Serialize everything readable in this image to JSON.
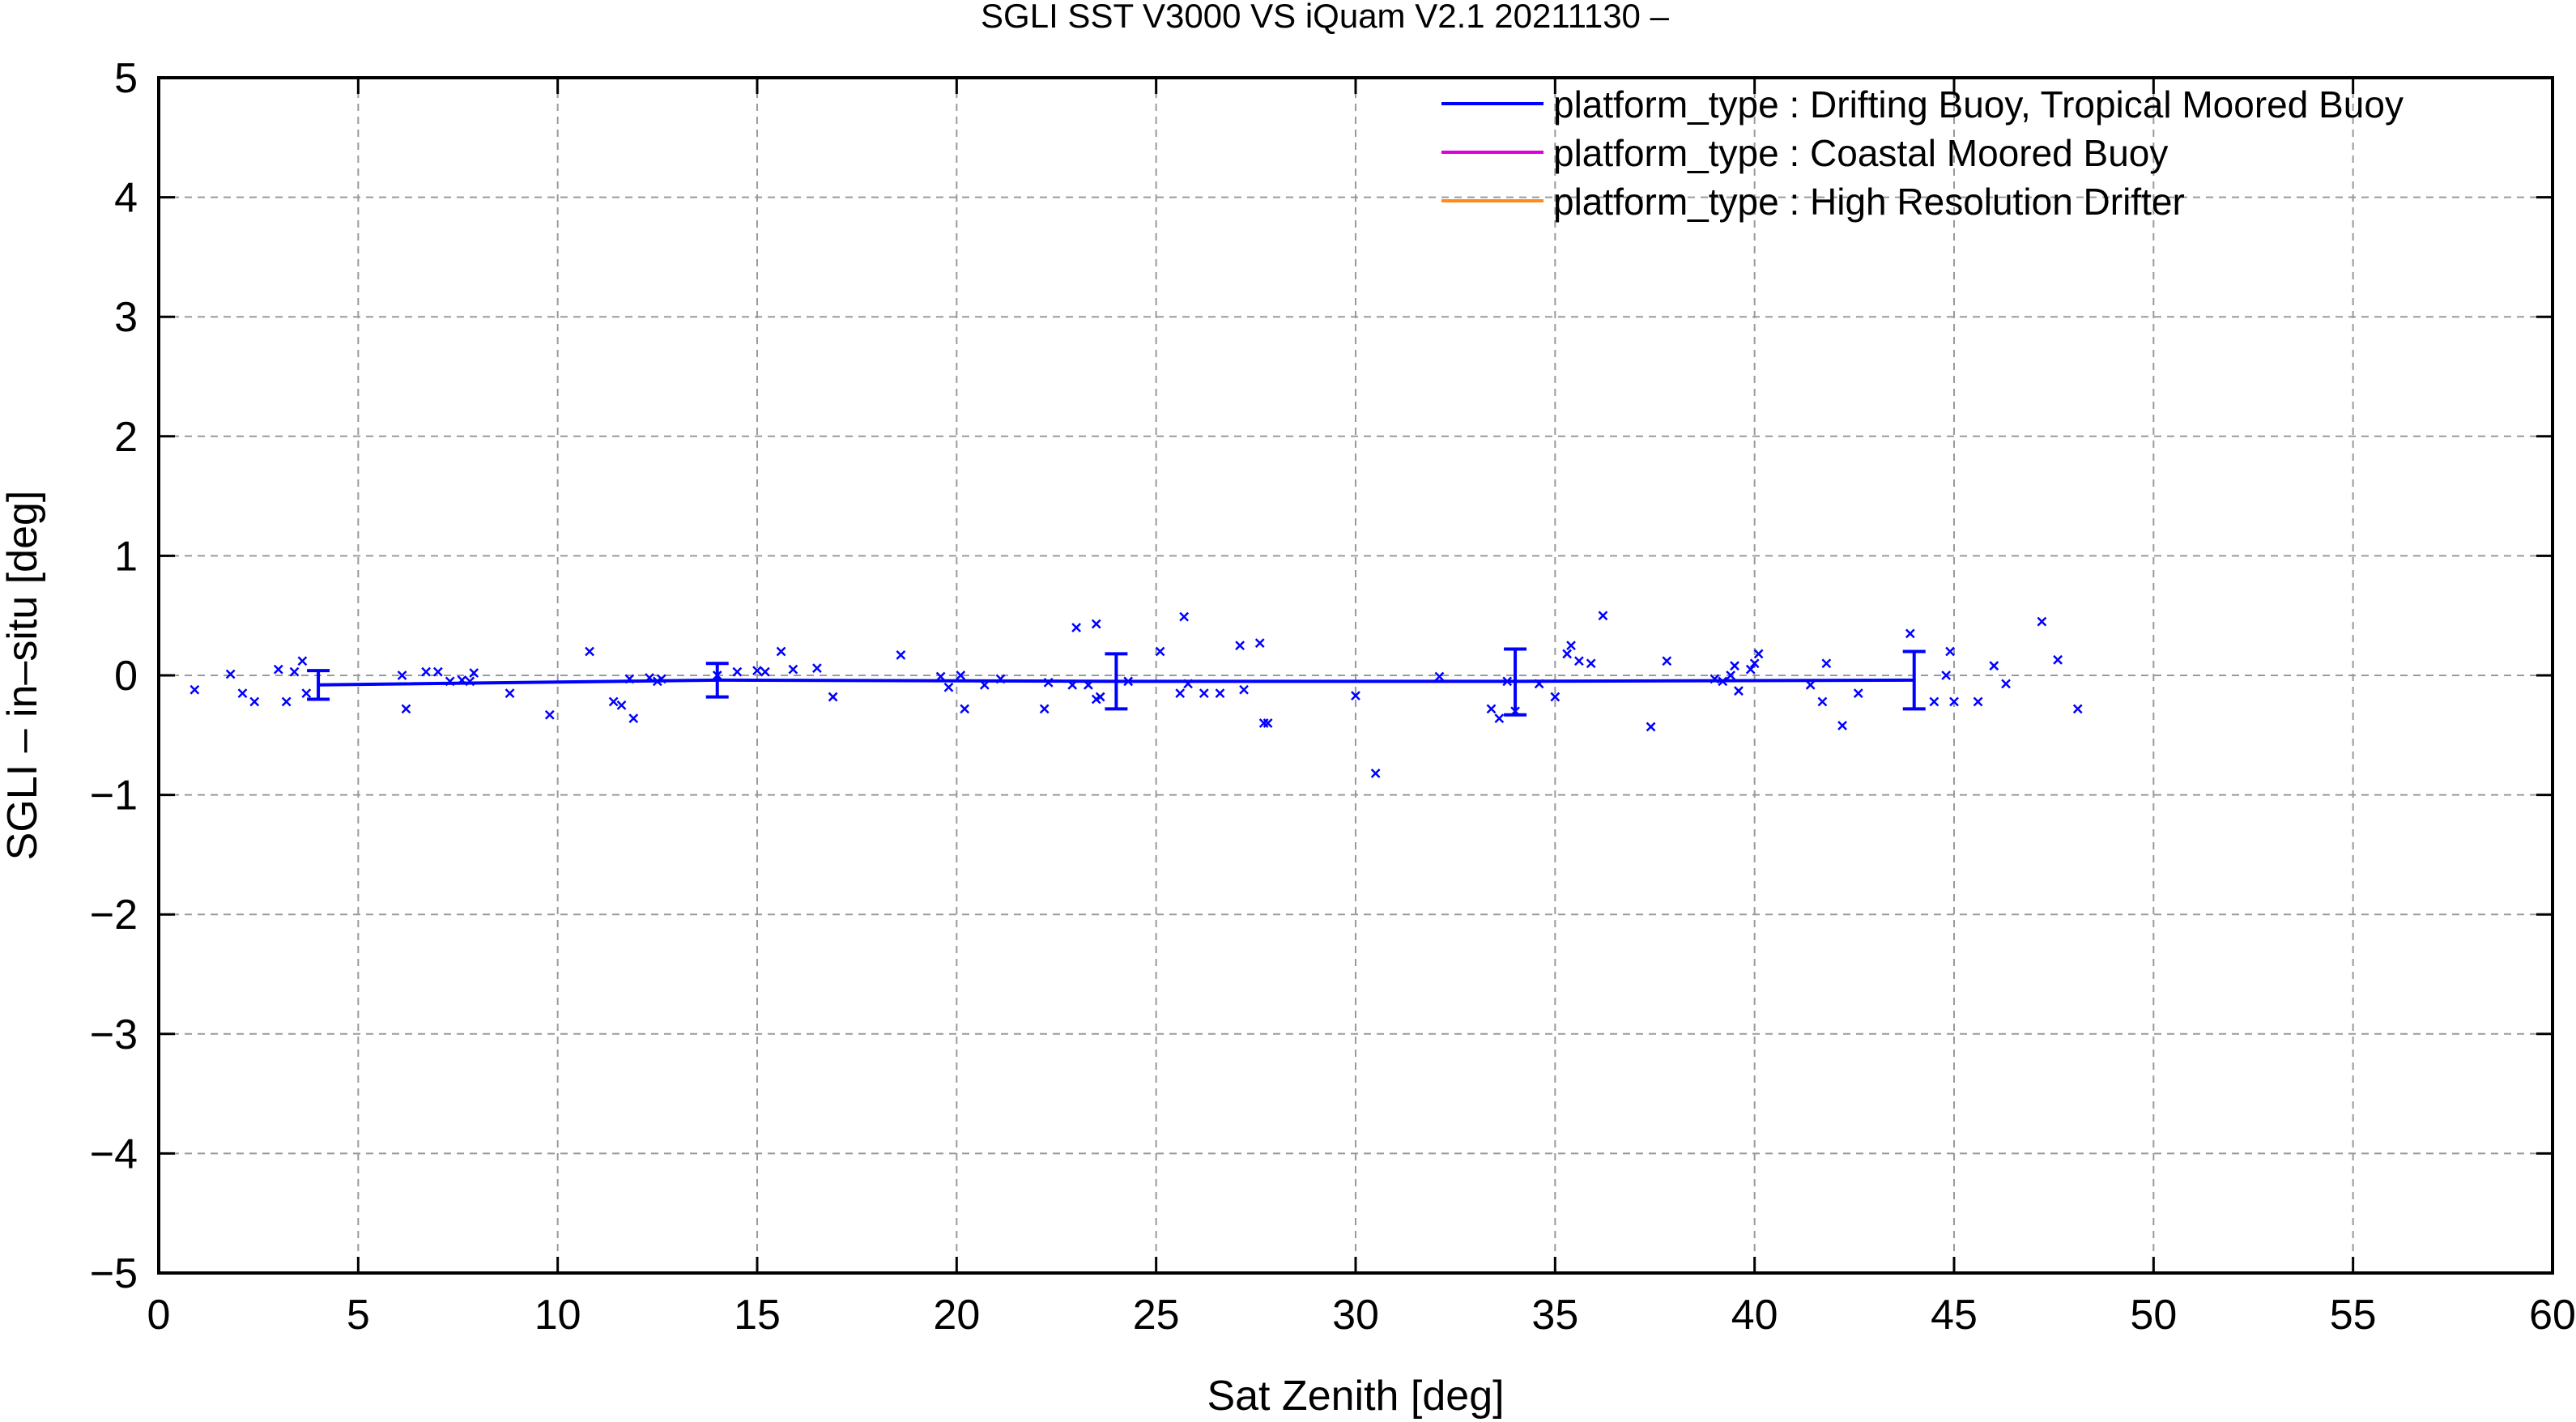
{
  "chart_data": {
    "type": "scatter",
    "title": "SGLI SST V3000 VS iQuam V2.1 20211130 –",
    "xlabel": "Sat Zenith [deg]",
    "ylabel": "SGLI – in–situ [deg]",
    "xlim": [
      0,
      60
    ],
    "ylim": [
      -5,
      5
    ],
    "x_ticks": [
      0,
      5,
      10,
      15,
      20,
      25,
      30,
      35,
      40,
      45,
      50,
      55,
      60
    ],
    "y_ticks": [
      5,
      4,
      3,
      2,
      1,
      0,
      -1,
      -2,
      -3,
      -4,
      -5
    ],
    "x_tick_labels": [
      "0",
      "5",
      "10",
      "15",
      "20",
      "25",
      "30",
      "35",
      "40",
      "45",
      "50",
      "55",
      "60"
    ],
    "y_tick_labels": [
      "5",
      "4",
      "3",
      "2",
      "1",
      "0",
      "−1",
      "−2",
      "−3",
      "−4",
      "−5"
    ],
    "grid": true,
    "legend_position": "top-right",
    "legend": [
      {
        "label": "platform_type : Drifting Buoy, Tropical Moored Buoy",
        "color": "#0000ff"
      },
      {
        "label": "platform_type : Coastal Moored Buoy",
        "color": "#dd00dd"
      },
      {
        "label": "platform_type : High Resolution Drifter",
        "color": "#ff8c1a"
      }
    ],
    "series": [
      {
        "color": "#0000ff",
        "mean_line": {
          "x": [
            4,
            14,
            24,
            34,
            44
          ],
          "y": [
            -0.08,
            -0.04,
            -0.05,
            -0.05,
            -0.04
          ],
          "err_low": [
            -0.2,
            -0.18,
            -0.28,
            -0.33,
            -0.28
          ],
          "err_high": [
            0.04,
            0.1,
            0.18,
            0.22,
            0.2
          ]
        },
        "points": [
          [
            0.9,
            -0.12
          ],
          [
            1.8,
            0.01
          ],
          [
            2.1,
            -0.15
          ],
          [
            2.4,
            -0.22
          ],
          [
            3.0,
            0.05
          ],
          [
            3.2,
            -0.22
          ],
          [
            3.4,
            0.03
          ],
          [
            3.6,
            0.12
          ],
          [
            3.7,
            -0.15
          ],
          [
            6.1,
            0.0
          ],
          [
            6.2,
            -0.28
          ],
          [
            6.7,
            0.03
          ],
          [
            7.0,
            0.03
          ],
          [
            7.3,
            -0.05
          ],
          [
            7.6,
            -0.04
          ],
          [
            7.8,
            -0.05
          ],
          [
            7.9,
            0.02
          ],
          [
            8.8,
            -0.15
          ],
          [
            9.8,
            -0.33
          ],
          [
            10.8,
            0.2
          ],
          [
            11.4,
            -0.22
          ],
          [
            11.6,
            -0.25
          ],
          [
            11.8,
            -0.03
          ],
          [
            11.9,
            -0.36
          ],
          [
            12.3,
            -0.02
          ],
          [
            12.5,
            -0.05
          ],
          [
            12.6,
            -0.03
          ],
          [
            14.0,
            0.0
          ],
          [
            14.5,
            0.03
          ],
          [
            15.0,
            0.04
          ],
          [
            15.2,
            0.03
          ],
          [
            15.6,
            0.2
          ],
          [
            15.9,
            0.05
          ],
          [
            16.5,
            0.06
          ],
          [
            16.9,
            -0.18
          ],
          [
            18.6,
            0.17
          ],
          [
            19.6,
            -0.01
          ],
          [
            19.8,
            -0.1
          ],
          [
            20.1,
            0.0
          ],
          [
            20.2,
            -0.28
          ],
          [
            20.7,
            -0.08
          ],
          [
            21.1,
            -0.03
          ],
          [
            22.2,
            -0.28
          ],
          [
            22.3,
            -0.06
          ],
          [
            22.9,
            -0.08
          ],
          [
            23.0,
            0.4
          ],
          [
            23.3,
            -0.08
          ],
          [
            23.5,
            -0.2
          ],
          [
            23.6,
            -0.18
          ],
          [
            23.5,
            0.43
          ],
          [
            24.3,
            -0.05
          ],
          [
            25.1,
            0.2
          ],
          [
            25.6,
            -0.15
          ],
          [
            25.7,
            0.49
          ],
          [
            25.8,
            -0.07
          ],
          [
            26.2,
            -0.15
          ],
          [
            26.6,
            -0.15
          ],
          [
            27.1,
            0.25
          ],
          [
            27.2,
            -0.12
          ],
          [
            27.6,
            0.27
          ],
          [
            27.7,
            -0.4
          ],
          [
            27.8,
            -0.4
          ],
          [
            30.0,
            -0.17
          ],
          [
            30.5,
            -0.82
          ],
          [
            32.1,
            -0.01
          ],
          [
            33.4,
            -0.28
          ],
          [
            33.6,
            -0.36
          ],
          [
            33.8,
            -0.05
          ],
          [
            34.0,
            -0.3
          ],
          [
            34.6,
            -0.07
          ],
          [
            35.0,
            -0.18
          ],
          [
            35.3,
            0.18
          ],
          [
            35.4,
            0.25
          ],
          [
            35.6,
            0.12
          ],
          [
            35.9,
            0.1
          ],
          [
            36.2,
            0.5
          ],
          [
            37.4,
            -0.43
          ],
          [
            37.8,
            0.12
          ],
          [
            39.0,
            -0.03
          ],
          [
            39.2,
            -0.05
          ],
          [
            39.4,
            0.0
          ],
          [
            39.5,
            0.08
          ],
          [
            39.6,
            -0.13
          ],
          [
            39.9,
            0.05
          ],
          [
            40.0,
            0.1
          ],
          [
            40.1,
            0.18
          ],
          [
            41.4,
            -0.08
          ],
          [
            41.7,
            -0.22
          ],
          [
            41.8,
            0.1
          ],
          [
            42.2,
            -0.42
          ],
          [
            42.6,
            -0.15
          ],
          [
            43.9,
            0.35
          ],
          [
            44.5,
            -0.22
          ],
          [
            44.8,
            0.0
          ],
          [
            44.9,
            0.2
          ],
          [
            45.0,
            -0.22
          ],
          [
            45.6,
            -0.22
          ],
          [
            46.0,
            0.08
          ],
          [
            46.3,
            -0.07
          ],
          [
            47.2,
            0.45
          ],
          [
            47.6,
            0.13
          ],
          [
            48.1,
            -0.28
          ]
        ]
      }
    ]
  }
}
